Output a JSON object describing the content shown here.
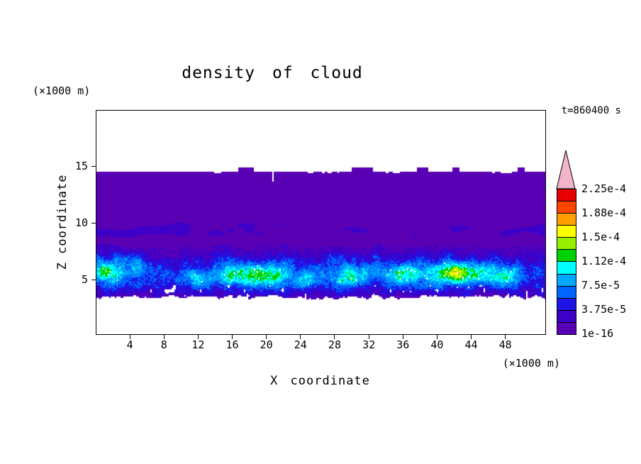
{
  "chart_data": {
    "type": "heatmap",
    "title": "density of cloud",
    "xlabel": "X coordinate",
    "ylabel": "Z coordinate",
    "x_unit": "(×1000 m)",
    "y_unit": "(×1000 m)",
    "timestamp": "t=860400 s",
    "x_ticks": [
      4,
      8,
      12,
      16,
      20,
      24,
      28,
      32,
      36,
      40,
      44,
      48
    ],
    "y_ticks": [
      5,
      10,
      15
    ],
    "x_range": [
      0,
      52.6
    ],
    "z_range": [
      0.3,
      19.9
    ],
    "grid": false,
    "legend_position": "right",
    "colorbar": {
      "labels": [
        "1e-16",
        "3.75e-5",
        "7.5e-5",
        "1.12e-4",
        "1.5e-4",
        "1.88e-4",
        "2.25e-4"
      ],
      "colors": [
        "#5A00B4",
        "#3C00C8",
        "#1E14E6",
        "#0064FF",
        "#00A8FF",
        "#00FFFF",
        "#00D200",
        "#96F000",
        "#FFFF00",
        "#FFA000",
        "#FF4600",
        "#E60000"
      ],
      "overflow_color": "#F4B4C8"
    },
    "field": {
      "description": "vertical cross-section of cloud density; thin anvil layer of minimal density (1e-16) from z=3.5 to z=14.5 km across all x, with turbulent higher-density cloud band between z=4 and z=8 km",
      "cloud_top_z": 14.55,
      "cloud_base_z": 3.55,
      "bright_band_center_z": 5.6,
      "bright_band_halfwidth": 1.9,
      "streak_center_z": 9.4,
      "streak_halfwidth": 1.1,
      "max_level_observed": "~2e-4 (yellow) near x=42",
      "hotspots": [
        {
          "x": 1.2,
          "z": 6.0,
          "sx": 1.8,
          "sz": 1.5,
          "amp": 0.42
        },
        {
          "x": 5.0,
          "z": 6.6,
          "sx": 1.5,
          "sz": 0.9,
          "amp": 0.3
        },
        {
          "x": 11.5,
          "z": 5.0,
          "sx": 2.2,
          "sz": 1.0,
          "amp": 0.4
        },
        {
          "x": 17.0,
          "z": 5.2,
          "sx": 3.0,
          "sz": 1.2,
          "amp": 0.45
        },
        {
          "x": 21.0,
          "z": 5.6,
          "sx": 1.5,
          "sz": 0.9,
          "amp": 0.35
        },
        {
          "x": 25.0,
          "z": 5.0,
          "sx": 1.8,
          "sz": 0.9,
          "amp": 0.35
        },
        {
          "x": 30.0,
          "z": 5.2,
          "sx": 2.0,
          "sz": 1.0,
          "amp": 0.4
        },
        {
          "x": 36.0,
          "z": 5.6,
          "sx": 1.8,
          "sz": 1.0,
          "amp": 0.35
        },
        {
          "x": 42.3,
          "z": 5.7,
          "sx": 2.4,
          "sz": 1.0,
          "amp": 0.85
        },
        {
          "x": 47.3,
          "z": 5.5,
          "sx": 2.2,
          "sz": 1.1,
          "amp": 0.55
        }
      ]
    }
  }
}
